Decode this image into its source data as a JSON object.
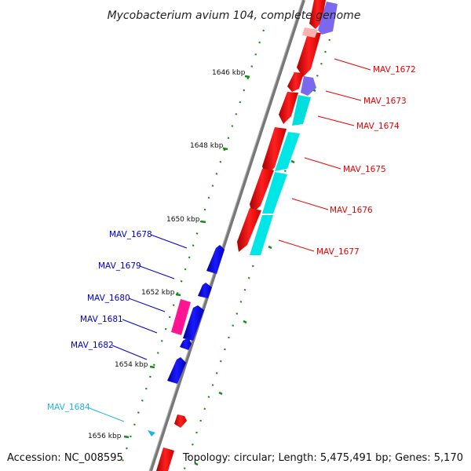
{
  "title": "Mycobacterium avium 104, complete genome",
  "accession": "Accession: NC_008595",
  "summary": "Topology: circular; Length: 5,475,491 bp; Genes: 5,170",
  "colors": {
    "backbone": "#808080",
    "tick_dots": "#1a8a1a",
    "forward_cds": "#ee0000",
    "reverse_cds": "#0000dd",
    "purple_feature": "#7b68ee",
    "cyan_feature": "#00e5e5",
    "magenta_feature": "#ff1493",
    "rna_feature": "#1fb4e6"
  },
  "ticks": [
    {
      "label": "1646 kbp"
    },
    {
      "label": "1648 kbp"
    },
    {
      "label": "1650 kbp"
    },
    {
      "label": "1652 kbp"
    },
    {
      "label": "1654 kbp"
    },
    {
      "label": "1656 kbp"
    }
  ],
  "genes_right": [
    {
      "label": "MAV_1672",
      "color": "#ee0000"
    },
    {
      "label": "MAV_1673",
      "color": "#ee0000"
    },
    {
      "label": "MAV_1674",
      "color": "#ee0000"
    },
    {
      "label": "MAV_1675",
      "color": "#ee0000"
    },
    {
      "label": "MAV_1676",
      "color": "#ee0000"
    },
    {
      "label": "MAV_1677",
      "color": "#ee0000"
    }
  ],
  "genes_left": [
    {
      "label": "MAV_1678",
      "color": "#0000cc"
    },
    {
      "label": "MAV_1679",
      "color": "#0000cc"
    },
    {
      "label": "MAV_1680",
      "color": "#0000cc"
    },
    {
      "label": "MAV_1681",
      "color": "#0000cc"
    },
    {
      "label": "MAV_1682",
      "color": "#0000cc"
    },
    {
      "label": "MAV_1684",
      "color": "#1fb4e6"
    }
  ]
}
